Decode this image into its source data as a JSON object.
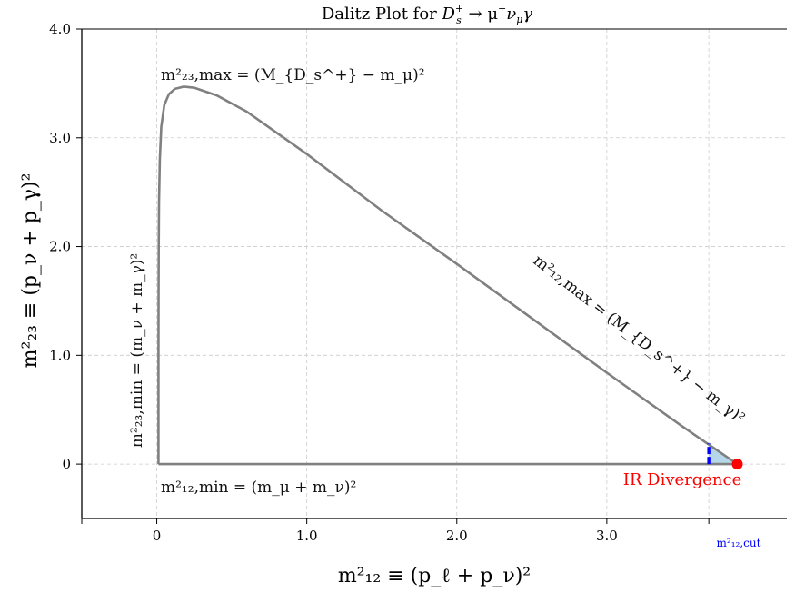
{
  "chart_data": {
    "type": "line",
    "title": "Dalitz Plot for D_s^+ → μ^+ν_μγ",
    "title_parts": {
      "prefix": "Dalitz Plot for ",
      "particle": "D",
      "sup": "+",
      "sub": "s",
      "arrow": " → μ",
      "mu_sup": "+",
      "nu": "ν",
      "nu_sub": "μ",
      "gamma": "γ"
    },
    "xlabel": "m²₁₂ ≡ (p_ℓ + p_ν)²",
    "ylabel": "m²₂₃ ≡ (p_ν + p_γ)²",
    "xlim": [
      -0.5,
      4.2
    ],
    "ylim": [
      -0.5,
      4.0
    ],
    "grid": true,
    "x_ticks": [
      {
        "value": 0,
        "label": "0"
      },
      {
        "value": 1,
        "label": "1.0"
      },
      {
        "value": 2,
        "label": "2.0"
      },
      {
        "value": 3,
        "label": "3.0"
      }
    ],
    "y_ticks": [
      {
        "value": 0,
        "label": "0"
      },
      {
        "value": 1,
        "label": "1.0"
      },
      {
        "value": 2,
        "label": "2.0"
      },
      {
        "value": 3,
        "label": "3.0"
      },
      {
        "value": 4,
        "label": "4.0"
      }
    ],
    "boundary": {
      "color": "#808080",
      "points": [
        [
          0.011,
          0.0
        ],
        [
          0.011,
          0.5
        ],
        [
          0.011,
          1.0
        ],
        [
          0.012,
          1.5
        ],
        [
          0.013,
          2.0
        ],
        [
          0.015,
          2.4
        ],
        [
          0.02,
          2.8
        ],
        [
          0.03,
          3.1
        ],
        [
          0.05,
          3.3
        ],
        [
          0.08,
          3.4
        ],
        [
          0.12,
          3.45
        ],
        [
          0.18,
          3.47
        ],
        [
          0.25,
          3.46
        ],
        [
          0.4,
          3.39
        ],
        [
          0.6,
          3.24
        ],
        [
          1.0,
          2.85
        ],
        [
          1.5,
          2.33
        ],
        [
          2.0,
          1.84
        ],
        [
          2.5,
          1.34
        ],
        [
          3.0,
          0.84
        ],
        [
          3.5,
          0.35
        ],
        [
          3.87,
          0.0
        ],
        [
          0.011,
          0.0
        ]
      ]
    },
    "ir_region": {
      "color": "#9ecae1",
      "points": [
        [
          3.68,
          0.0
        ],
        [
          3.68,
          0.19
        ],
        [
          3.87,
          0.0
        ]
      ]
    },
    "cut_line": {
      "x": 3.68,
      "y_top": 0.19,
      "color": "#0000ff"
    },
    "ir_point": {
      "x": 3.87,
      "y": 0.0,
      "color": "#ff0000"
    },
    "annotations": {
      "m23_max": "m²₂₃,max = (M_{D_s^+} − m_μ)²",
      "m23_min": "m²₂₃,min = (m_ν + m_γ)²",
      "m12_min": "m²₁₂,min = (m_μ + m_ν)²",
      "m12_max": "m²₁₂,max = (M_{D_s^+} − m_γ)²",
      "ir_label": "IR Divergence",
      "cut_label": "m²₁₂,cut"
    }
  }
}
